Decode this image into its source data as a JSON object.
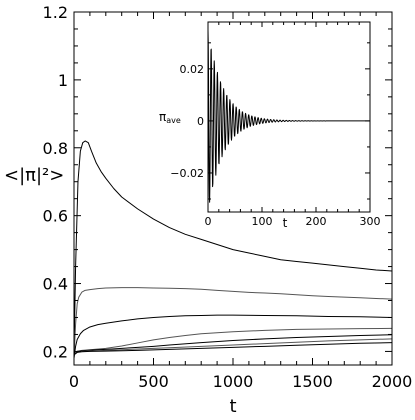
{
  "chart_data": [
    {
      "type": "line",
      "xlabel": "t",
      "ylabel": "<|π|²>",
      "xlim": [
        0,
        2000
      ],
      "ylim": [
        0.16,
        1.2
      ],
      "xticks": [
        0,
        500,
        1000,
        1500,
        2000
      ],
      "yticks": [
        0.2,
        0.4,
        0.6,
        0.8,
        1,
        1.2
      ],
      "ytick_labels": [
        "0.2",
        "0.4",
        "0.6",
        "0.8",
        "1",
        "1.2"
      ],
      "grid": false,
      "series": [
        {
          "color": "#000000",
          "x": [
            0,
            10,
            25,
            40,
            55,
            70,
            90,
            110,
            140,
            170,
            200,
            250,
            300,
            400,
            500,
            600,
            700,
            800,
            900,
            1000,
            1100,
            1200,
            1300,
            1400,
            1500,
            1600,
            1700,
            1800,
            1900,
            2000
          ],
          "y": [
            0.18,
            0.45,
            0.7,
            0.79,
            0.815,
            0.82,
            0.815,
            0.79,
            0.755,
            0.73,
            0.71,
            0.68,
            0.655,
            0.62,
            0.59,
            0.565,
            0.545,
            0.53,
            0.515,
            0.5,
            0.49,
            0.48,
            0.47,
            0.465,
            0.46,
            0.455,
            0.45,
            0.445,
            0.44,
            0.437
          ]
        },
        {
          "color": "#555555",
          "x": [
            0,
            10,
            20,
            30,
            50,
            70,
            100,
            150,
            200,
            300,
            400,
            500,
            600,
            700,
            800,
            900,
            1000,
            1100,
            1200,
            1300,
            1400,
            1500,
            1600,
            1700,
            1800,
            1900,
            2000
          ],
          "y": [
            0.18,
            0.28,
            0.34,
            0.36,
            0.375,
            0.38,
            0.382,
            0.385,
            0.387,
            0.388,
            0.388,
            0.387,
            0.386,
            0.385,
            0.383,
            0.38,
            0.377,
            0.374,
            0.372,
            0.37,
            0.367,
            0.364,
            0.362,
            0.36,
            0.358,
            0.356,
            0.354
          ]
        },
        {
          "color": "#000000",
          "x": [
            0,
            10,
            20,
            40,
            60,
            100,
            150,
            200,
            300,
            400,
            500,
            600,
            700,
            800,
            900,
            1000,
            1200,
            1400,
            1600,
            1800,
            2000
          ],
          "y": [
            0.18,
            0.215,
            0.235,
            0.252,
            0.262,
            0.272,
            0.279,
            0.283,
            0.29,
            0.296,
            0.3,
            0.303,
            0.305,
            0.306,
            0.307,
            0.307,
            0.306,
            0.305,
            0.303,
            0.302,
            0.3
          ]
        },
        {
          "color": "#555555",
          "x": [
            0,
            20,
            50,
            100,
            200,
            300,
            400,
            500,
            600,
            700,
            800,
            900,
            1000,
            1200,
            1400,
            1600,
            1800,
            2000
          ],
          "y": [
            0.19,
            0.2,
            0.203,
            0.205,
            0.209,
            0.216,
            0.225,
            0.234,
            0.241,
            0.247,
            0.252,
            0.255,
            0.258,
            0.262,
            0.265,
            0.266,
            0.267,
            0.268
          ]
        },
        {
          "color": "#000000",
          "x": [
            0,
            20,
            50,
            100,
            200,
            300,
            400,
            500,
            600,
            800,
            1000,
            1200,
            1400,
            1600,
            1800,
            2000
          ],
          "y": [
            0.19,
            0.2,
            0.202,
            0.204,
            0.206,
            0.209,
            0.212,
            0.215,
            0.219,
            0.226,
            0.232,
            0.237,
            0.241,
            0.244,
            0.247,
            0.249
          ]
        },
        {
          "color": "#555555",
          "x": [
            0,
            20,
            50,
            100,
            200,
            400,
            600,
            800,
            1000,
            1200,
            1400,
            1600,
            1800,
            2000
          ],
          "y": [
            0.19,
            0.198,
            0.2,
            0.201,
            0.203,
            0.207,
            0.211,
            0.215,
            0.219,
            0.223,
            0.227,
            0.231,
            0.234,
            0.237
          ]
        },
        {
          "color": "#000000",
          "x": [
            0,
            20,
            50,
            100,
            200,
            400,
            600,
            800,
            1000,
            1200,
            1400,
            1600,
            1800,
            2000
          ],
          "y": [
            0.19,
            0.197,
            0.199,
            0.2,
            0.201,
            0.203,
            0.206,
            0.209,
            0.212,
            0.215,
            0.218,
            0.221,
            0.224,
            0.226
          ]
        }
      ]
    },
    {
      "type": "line",
      "xlabel": "t",
      "ylabel": "π_ave",
      "ylabel_main": "π",
      "ylabel_sub": "ave",
      "xlim": [
        0,
        300
      ],
      "ylim": [
        -0.035,
        0.038
      ],
      "xticks": [
        0,
        100,
        200,
        300
      ],
      "yticks": [
        0.02,
        0,
        -0.02
      ],
      "ytick_labels": [
        "0.02",
        "0",
        "−0.02"
      ],
      "grid": false,
      "signal": {
        "amplitude": 0.035,
        "period": 5.8,
        "decay_time": 28,
        "t_end": 300,
        "dt": 0.5
      }
    }
  ]
}
